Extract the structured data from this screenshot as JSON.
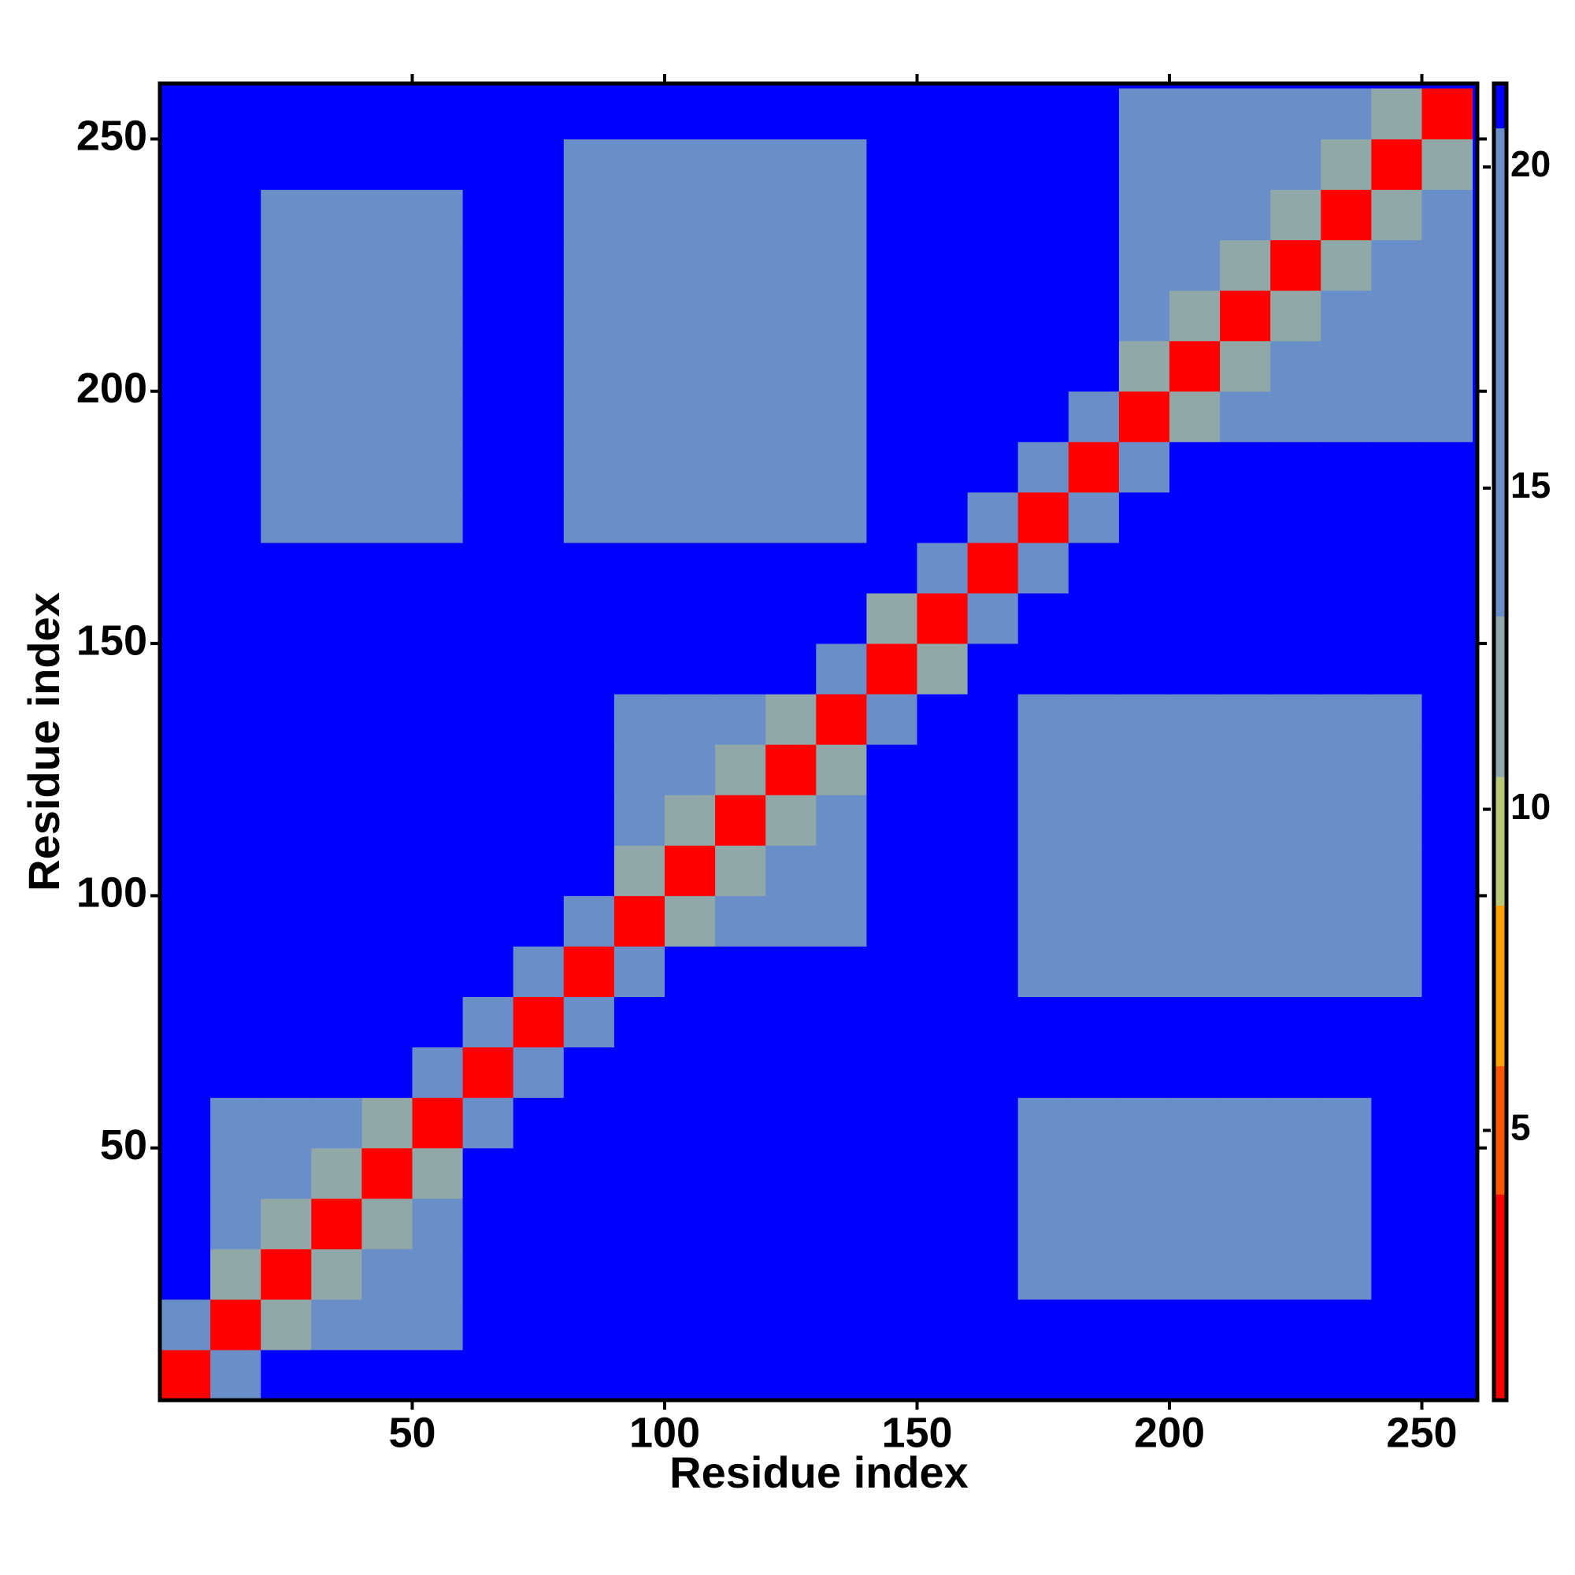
{
  "chart_data": {
    "type": "heatmap",
    "xlabel": "Residue index",
    "ylabel": "Residue index",
    "xlim": [
      0,
      261
    ],
    "ylim": [
      0,
      261
    ],
    "xticks": [
      50,
      100,
      150,
      200,
      250
    ],
    "yticks": [
      50,
      100,
      150,
      200,
      250
    ],
    "zlim": [
      0.8,
      21.3
    ],
    "zticks": [
      5,
      10,
      15,
      20
    ],
    "colorscale": [
      {
        "max": 4,
        "color": "#ff0000"
      },
      {
        "max": 6,
        "color": "#ff5500"
      },
      {
        "max": 8.5,
        "color": "#ffa000"
      },
      {
        "max": 10.5,
        "color": "#b8c878"
      },
      {
        "max": 13,
        "color": "#90a8a8"
      },
      {
        "max": 20.6,
        "color": "#6a8fc8"
      },
      {
        "max": 21.3,
        "color": "#0000ff"
      }
    ],
    "xbins": [
      0,
      10,
      20,
      30,
      40,
      50,
      60,
      70,
      80,
      90,
      100,
      110,
      120,
      130,
      140,
      150,
      160,
      170,
      180,
      190,
      200,
      210,
      220,
      230,
      240,
      250,
      260
    ],
    "ybins": [
      0,
      10,
      20,
      30,
      40,
      50,
      60,
      70,
      80,
      90,
      100,
      110,
      120,
      130,
      140,
      150,
      160,
      170,
      180,
      190,
      200,
      210,
      220,
      230,
      240,
      250,
      260
    ],
    "z": [
      [
        2,
        15,
        21,
        21,
        21,
        21,
        21,
        21,
        21,
        21,
        21,
        21,
        21,
        21,
        21,
        21,
        21,
        21,
        21,
        21,
        21,
        21,
        21,
        21,
        21,
        21
      ],
      [
        15,
        2,
        11,
        16,
        18,
        18,
        21,
        21,
        21,
        21,
        21,
        21,
        21,
        21,
        21,
        21,
        21,
        21,
        21,
        21,
        21,
        21,
        21,
        21,
        21,
        21
      ],
      [
        21,
        11,
        2,
        11,
        16,
        18,
        21,
        21,
        21,
        21,
        21,
        21,
        21,
        21,
        21,
        21,
        21,
        19,
        19,
        19,
        19,
        19,
        19,
        19,
        21,
        21
      ],
      [
        21,
        16,
        11,
        2,
        11,
        16,
        21,
        21,
        21,
        21,
        21,
        21,
        21,
        21,
        21,
        21,
        21,
        19,
        19,
        19,
        19,
        19,
        19,
        19,
        21,
        21
      ],
      [
        21,
        18,
        16,
        11,
        2,
        11,
        21,
        21,
        21,
        21,
        21,
        21,
        21,
        21,
        21,
        21,
        21,
        19,
        19,
        19,
        19,
        19,
        19,
        19,
        21,
        21
      ],
      [
        21,
        18,
        18,
        16,
        11,
        2,
        15,
        21,
        21,
        21,
        21,
        21,
        21,
        21,
        21,
        21,
        21,
        19,
        19,
        19,
        19,
        19,
        19,
        19,
        21,
        21
      ],
      [
        21,
        21,
        21,
        21,
        21,
        15,
        2,
        15,
        21,
        21,
        21,
        21,
        21,
        21,
        21,
        21,
        21,
        21,
        21,
        21,
        21,
        21,
        21,
        21,
        21,
        21
      ],
      [
        21,
        21,
        21,
        21,
        21,
        21,
        15,
        2,
        15,
        21,
        21,
        21,
        21,
        21,
        21,
        21,
        21,
        21,
        21,
        21,
        21,
        21,
        21,
        21,
        21,
        21
      ],
      [
        21,
        21,
        21,
        21,
        21,
        21,
        21,
        15,
        2,
        15,
        21,
        21,
        21,
        21,
        21,
        21,
        21,
        19,
        19,
        19,
        19,
        19,
        19,
        19,
        19,
        21
      ],
      [
        21,
        21,
        21,
        21,
        21,
        21,
        21,
        21,
        15,
        2,
        11,
        16,
        18,
        18,
        21,
        21,
        21,
        19,
        19,
        19,
        19,
        19,
        19,
        19,
        19,
        21
      ],
      [
        21,
        21,
        21,
        21,
        21,
        21,
        21,
        21,
        21,
        11,
        2,
        11,
        16,
        18,
        21,
        21,
        21,
        19,
        19,
        19,
        19,
        19,
        19,
        19,
        19,
        21
      ],
      [
        21,
        21,
        21,
        21,
        21,
        21,
        21,
        21,
        21,
        16,
        11,
        2,
        11,
        16,
        21,
        21,
        21,
        19,
        19,
        19,
        19,
        19,
        19,
        19,
        19,
        21
      ],
      [
        21,
        21,
        21,
        21,
        21,
        21,
        21,
        21,
        21,
        18,
        16,
        11,
        2,
        11,
        21,
        21,
        21,
        19,
        19,
        19,
        19,
        19,
        19,
        19,
        19,
        21
      ],
      [
        21,
        21,
        21,
        21,
        21,
        21,
        21,
        21,
        21,
        18,
        18,
        16,
        11,
        2,
        15,
        21,
        21,
        19,
        19,
        19,
        19,
        19,
        19,
        19,
        19,
        21
      ],
      [
        21,
        21,
        21,
        21,
        21,
        21,
        21,
        21,
        21,
        21,
        21,
        21,
        21,
        15,
        2,
        11,
        21,
        21,
        21,
        21,
        21,
        21,
        21,
        21,
        21,
        21
      ],
      [
        21,
        21,
        21,
        21,
        21,
        21,
        21,
        21,
        21,
        21,
        21,
        21,
        21,
        21,
        11,
        2,
        15,
        21,
        21,
        21,
        21,
        21,
        21,
        21,
        21,
        21
      ],
      [
        21,
        21,
        21,
        21,
        21,
        21,
        21,
        21,
        21,
        21,
        21,
        21,
        21,
        21,
        21,
        15,
        2,
        15,
        21,
        21,
        21,
        21,
        21,
        21,
        21,
        21
      ],
      [
        21,
        21,
        19,
        19,
        19,
        19,
        21,
        21,
        19,
        19,
        19,
        19,
        19,
        19,
        21,
        21,
        15,
        2,
        15,
        21,
        21,
        21,
        21,
        21,
        21,
        21
      ],
      [
        21,
        21,
        19,
        19,
        19,
        19,
        21,
        21,
        19,
        19,
        19,
        19,
        19,
        19,
        21,
        21,
        21,
        15,
        2,
        15,
        21,
        21,
        21,
        21,
        21,
        21
      ],
      [
        21,
        21,
        19,
        19,
        19,
        19,
        21,
        21,
        19,
        19,
        19,
        19,
        19,
        19,
        21,
        21,
        21,
        21,
        15,
        2,
        11,
        16,
        18,
        18,
        18,
        18
      ],
      [
        21,
        21,
        19,
        19,
        19,
        19,
        21,
        21,
        19,
        19,
        19,
        19,
        19,
        19,
        21,
        21,
        21,
        21,
        21,
        11,
        2,
        11,
        16,
        18,
        18,
        18
      ],
      [
        21,
        21,
        19,
        19,
        19,
        19,
        21,
        21,
        19,
        19,
        19,
        19,
        19,
        19,
        21,
        21,
        21,
        21,
        21,
        16,
        11,
        2,
        11,
        16,
        18,
        18
      ],
      [
        21,
        21,
        19,
        19,
        19,
        19,
        21,
        21,
        19,
        19,
        19,
        19,
        19,
        19,
        21,
        21,
        21,
        21,
        21,
        18,
        16,
        11,
        2,
        11,
        16,
        18
      ],
      [
        21,
        21,
        19,
        19,
        19,
        19,
        21,
        21,
        19,
        19,
        19,
        19,
        19,
        19,
        21,
        21,
        21,
        21,
        21,
        18,
        18,
        16,
        11,
        2,
        11,
        16
      ],
      [
        21,
        21,
        21,
        21,
        21,
        21,
        21,
        21,
        19,
        19,
        19,
        19,
        19,
        19,
        21,
        21,
        21,
        21,
        21,
        18,
        18,
        18,
        16,
        11,
        2,
        11
      ],
      [
        21,
        21,
        21,
        21,
        21,
        21,
        21,
        21,
        21,
        21,
        21,
        21,
        21,
        21,
        21,
        21,
        21,
        21,
        21,
        18,
        18,
        18,
        18,
        16,
        11,
        2
      ]
    ]
  }
}
